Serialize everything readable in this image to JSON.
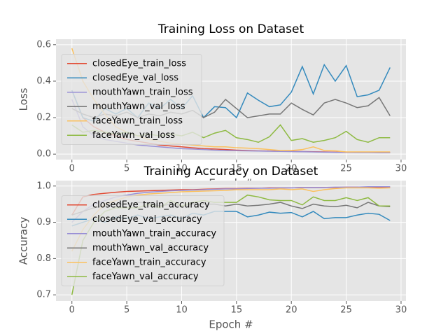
{
  "chart_data": [
    {
      "type": "line",
      "title": "Training Loss on Dataset",
      "xlabel": "Epoch #",
      "ylabel": "Loss",
      "x": [
        0,
        1,
        2,
        3,
        4,
        5,
        6,
        7,
        8,
        9,
        10,
        11,
        12,
        13,
        14,
        15,
        16,
        17,
        18,
        19,
        20,
        21,
        22,
        23,
        24,
        25,
        26,
        27,
        28,
        29
      ],
      "xlim": [
        -1.45,
        30.45
      ],
      "xticks": [
        0,
        5,
        10,
        15,
        20,
        25,
        30
      ],
      "ylim": [
        -0.03,
        0.63
      ],
      "yticks": [
        {
          "value": 0,
          "label": "0.0"
        },
        0.2,
        0.4,
        0.6
      ],
      "grid": true,
      "legend": "center left",
      "series": [
        {
          "name": "closedEye_train_loss",
          "color": "#E24A33",
          "values": [
            0.35,
            0.2,
            0.15,
            0.12,
            0.1,
            0.08,
            0.07,
            0.06,
            0.05,
            0.045,
            0.04,
            0.035,
            0.03,
            0.028,
            0.025,
            0.022,
            0.02,
            0.018,
            0.017,
            0.016,
            0.015,
            0.014,
            0.013,
            0.012,
            0.011,
            0.01,
            0.01,
            0.01,
            0.009,
            0.009
          ]
        },
        {
          "name": "closedEye_val_loss",
          "color": "#348ABD",
          "values": [
            0.35,
            0.2,
            0.18,
            0.25,
            0.22,
            0.25,
            0.2,
            0.28,
            0.25,
            0.3,
            0.25,
            0.32,
            0.2,
            0.26,
            0.255,
            0.2,
            0.335,
            0.295,
            0.26,
            0.27,
            0.34,
            0.48,
            0.33,
            0.49,
            0.4,
            0.485,
            0.315,
            0.325,
            0.35,
            0.475
          ]
        },
        {
          "name": "mouthYawn_train_loss",
          "color": "#988ED5",
          "values": [
            0.3,
            0.15,
            0.1,
            0.08,
            0.07,
            0.06,
            0.05,
            0.045,
            0.04,
            0.035,
            0.03,
            0.028,
            0.025,
            0.022,
            0.02,
            0.019,
            0.018,
            0.017,
            0.016,
            0.015,
            0.014,
            0.013,
            0.012,
            0.011,
            0.01,
            0.01,
            0.009,
            0.009,
            0.008,
            0.008
          ]
        },
        {
          "name": "mouthYawn_val_loss",
          "color": "#777777",
          "values": [
            0.25,
            0.22,
            0.2,
            0.22,
            0.21,
            0.23,
            0.2,
            0.22,
            0.21,
            0.23,
            0.22,
            0.24,
            0.2,
            0.23,
            0.3,
            0.25,
            0.2,
            0.21,
            0.22,
            0.22,
            0.28,
            0.245,
            0.215,
            0.28,
            0.3,
            0.28,
            0.255,
            0.265,
            0.31,
            0.21
          ]
        },
        {
          "name": "faceYawn_train_loss",
          "color": "#FBC15E",
          "values": [
            0.58,
            0.4,
            0.3,
            0.22,
            0.15,
            0.12,
            0.1,
            0.08,
            0.07,
            0.06,
            0.055,
            0.05,
            0.045,
            0.04,
            0.04,
            0.035,
            0.033,
            0.03,
            0.025,
            0.02,
            0.02,
            0.025,
            0.04,
            0.02,
            0.018,
            0.012,
            0.012,
            0.012,
            0.012,
            0.012
          ]
        },
        {
          "name": "faceYawn_val_loss",
          "color": "#8EBA42",
          "values": [
            0.16,
            0.12,
            0.13,
            0.12,
            0.11,
            0.12,
            0.1,
            0.11,
            0.1,
            0.11,
            0.1,
            0.12,
            0.09,
            0.115,
            0.13,
            0.09,
            0.08,
            0.065,
            0.095,
            0.16,
            0.075,
            0.085,
            0.065,
            0.075,
            0.09,
            0.125,
            0.08,
            0.065,
            0.09,
            0.09
          ]
        }
      ]
    },
    {
      "type": "line",
      "title": "Training Accuracy on Dataset",
      "xlabel": "Epoch #",
      "ylabel": "Accuracy",
      "x": [
        0,
        1,
        2,
        3,
        4,
        5,
        6,
        7,
        8,
        9,
        10,
        11,
        12,
        13,
        14,
        15,
        16,
        17,
        18,
        19,
        20,
        21,
        22,
        23,
        24,
        25,
        26,
        27,
        28,
        29
      ],
      "xlim": [
        -1.45,
        30.45
      ],
      "xticks": [
        0,
        5,
        10,
        15,
        20,
        25,
        30
      ],
      "ylim": [
        0.683,
        1.015
      ],
      "yticks": [
        0.7,
        0.8,
        0.9,
        {
          "value": 1,
          "label": "1.0"
        }
      ],
      "grid": true,
      "legend": "center left",
      "series": [
        {
          "name": "closedEye_train_accuracy",
          "color": "#E24A33",
          "values": [
            0.92,
            0.97,
            0.977,
            0.98,
            0.983,
            0.985,
            0.986,
            0.987,
            0.988,
            0.989,
            0.99,
            0.99,
            0.991,
            0.992,
            0.993,
            0.993,
            0.994,
            0.994,
            0.995,
            0.995,
            0.995,
            0.996,
            0.996,
            0.996,
            0.996,
            0.997,
            0.997,
            0.997,
            0.997,
            0.997
          ]
        },
        {
          "name": "closedEye_val_accuracy",
          "color": "#348ABD",
          "values": [
            0.89,
            0.9,
            0.91,
            0.9,
            0.915,
            0.91,
            0.92,
            0.91,
            0.915,
            0.92,
            0.91,
            0.925,
            0.92,
            0.93,
            0.93,
            0.93,
            0.915,
            0.92,
            0.928,
            0.925,
            0.927,
            0.915,
            0.93,
            0.91,
            0.913,
            0.913,
            0.92,
            0.925,
            0.922,
            0.905
          ]
        },
        {
          "name": "mouthYawn_train_accuracy",
          "color": "#988ED5",
          "values": [
            0.9,
            0.93,
            0.95,
            0.96,
            0.97,
            0.975,
            0.98,
            0.983,
            0.985,
            0.987,
            0.988,
            0.989,
            0.99,
            0.991,
            0.992,
            0.992,
            0.993,
            0.994,
            0.994,
            0.995,
            0.995,
            0.996,
            0.996,
            0.996,
            0.997,
            0.997,
            0.997,
            0.998,
            0.998,
            0.998
          ]
        },
        {
          "name": "mouthYawn_val_accuracy",
          "color": "#777777",
          "values": [
            0.92,
            0.93,
            0.94,
            0.945,
            0.95,
            0.95,
            0.955,
            0.953,
            0.945,
            0.95,
            0.945,
            0.95,
            0.95,
            0.95,
            0.945,
            0.95,
            0.945,
            0.947,
            0.95,
            0.955,
            0.945,
            0.938,
            0.95,
            0.945,
            0.943,
            0.947,
            0.94,
            0.955,
            0.945,
            0.943
          ]
        },
        {
          "name": "faceYawn_train_accuracy",
          "color": "#FBC15E",
          "values": [
            0.82,
            0.88,
            0.92,
            0.95,
            0.96,
            0.97,
            0.975,
            0.978,
            0.98,
            0.982,
            0.984,
            0.985,
            0.986,
            0.987,
            0.988,
            0.99,
            0.99,
            0.99,
            0.99,
            0.992,
            0.99,
            0.992,
            0.985,
            0.99,
            0.993,
            0.995,
            0.995,
            0.995,
            0.994,
            0.995
          ]
        },
        {
          "name": "faceYawn_val_accuracy",
          "color": "#8EBA42",
          "values": [
            0.7,
            0.85,
            0.9,
            0.93,
            0.94,
            0.94,
            0.94,
            0.95,
            0.94,
            0.96,
            0.945,
            0.955,
            0.96,
            0.955,
            0.955,
            0.955,
            0.975,
            0.97,
            0.962,
            0.96,
            0.96,
            0.948,
            0.97,
            0.96,
            0.96,
            0.968,
            0.96,
            0.968,
            0.945,
            0.945
          ]
        }
      ]
    }
  ]
}
